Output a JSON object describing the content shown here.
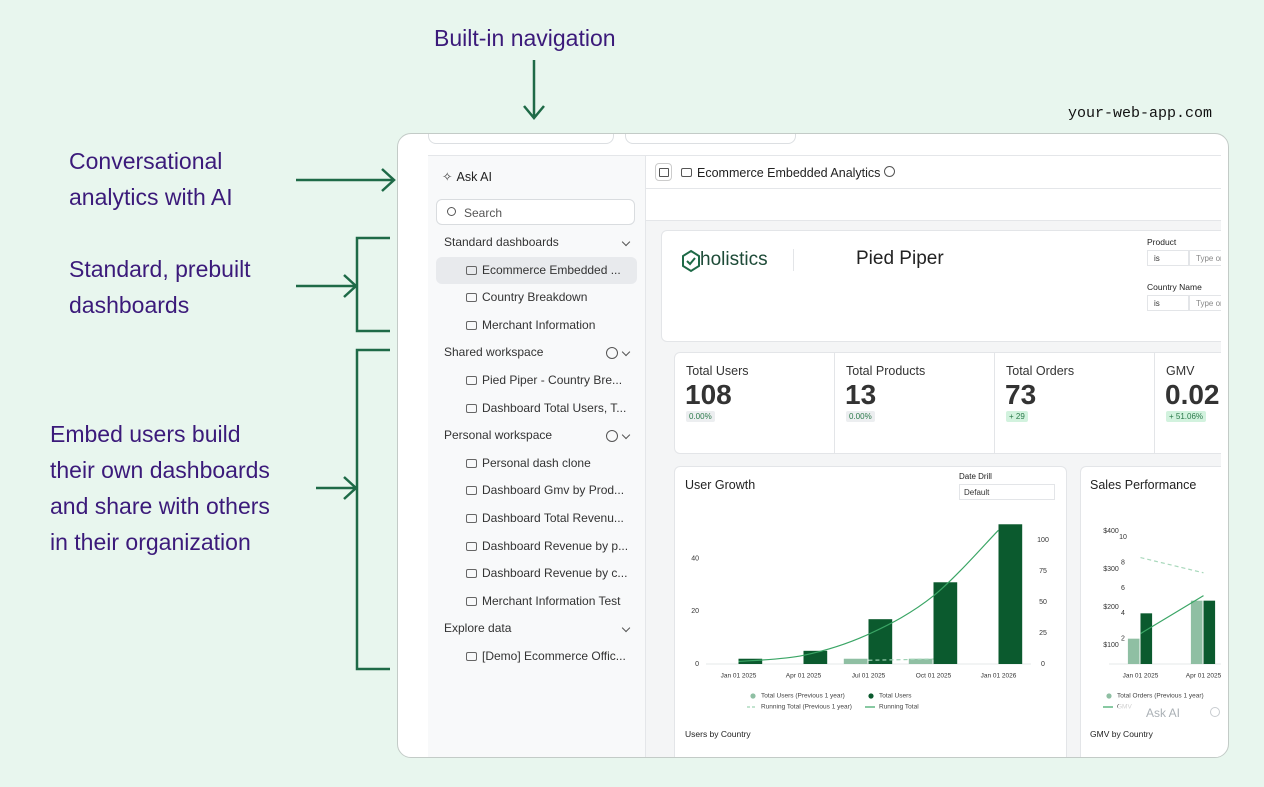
{
  "annotations": {
    "navigation": "Built-in navigation",
    "ai": [
      "Conversational",
      "analytics with AI"
    ],
    "standard": [
      "Standard, prebuilt",
      "dashboards"
    ],
    "embed": [
      "Embed users build",
      "their own dashboards",
      "and share with others",
      "in their organization"
    ]
  },
  "url": "your-web-app.com",
  "sidebar": {
    "ask_ai": "Ask AI",
    "search": "Search",
    "sections": [
      {
        "title": "Standard dashboards",
        "items": [
          "Ecommerce Embedded ...",
          "Country Breakdown",
          "Merchant Information"
        ]
      },
      {
        "title": "Shared workspace",
        "items": [
          "Pied Piper - Country Bre...",
          "Dashboard Total Users, T..."
        ]
      },
      {
        "title": "Personal workspace",
        "items": [
          "Personal dash clone",
          "Dashboard Gmv by Prod...",
          "Dashboard Total Revenu...",
          "Dashboard Revenue by p...",
          "Dashboard Revenue by c...",
          "Merchant Information Test"
        ]
      },
      {
        "title": "Explore data",
        "items": [
          "[Demo] Ecommerce Offic..."
        ]
      }
    ]
  },
  "header": {
    "title": "Ecommerce Embedded Analytics"
  },
  "dashboard": {
    "brand": "holistics",
    "name": "Pied Piper",
    "filters": [
      {
        "label": "Product",
        "operator": "is",
        "placeholder": "Type or"
      },
      {
        "label": "Country Name",
        "operator": "is",
        "placeholder": "Type or"
      }
    ],
    "kpis": [
      {
        "label": "Total Users",
        "value": "108",
        "change": "0.00%",
        "badge_color": "#eceef0"
      },
      {
        "label": "Total Products",
        "value": "13",
        "change": "0.00%",
        "badge_color": "#eceef0"
      },
      {
        "label": "Total Orders",
        "value": "73",
        "change": "+ 29",
        "badge_color": "#d2f2de"
      },
      {
        "label": "GMV",
        "value": "0.02",
        "change": "+ 51.06%",
        "badge_color": "#d2f2de"
      }
    ],
    "charts": [
      {
        "type": "combo",
        "title": "User Growth",
        "control": {
          "label": "Date Drill",
          "value": "Default"
        },
        "categories": [
          "Jan 01 2025",
          "Apr 01 2025",
          "Jul 01 2025",
          "Oct 01 2025",
          "Jan 01 2026"
        ],
        "ylim": [
          0,
          55
        ],
        "yticks": [
          0,
          20,
          40
        ],
        "y2lim": [
          0,
          117
        ],
        "y2ticks": [
          0,
          25,
          50,
          75,
          100
        ],
        "series": [
          {
            "name": "Total Users (Previous 1 year)",
            "type": "bar",
            "color": "#8fbfa3",
            "values": [
              null,
              null,
              2,
              2,
              null
            ]
          },
          {
            "name": "Total Users",
            "type": "bar",
            "color": "#0b5a2e",
            "values": [
              2,
              5,
              17,
              31,
              53
            ]
          },
          {
            "name": "Running Total (Previous 1 year)",
            "type": "line",
            "dashed": true,
            "axis": "y2",
            "color": "#9fd3b5",
            "values": [
              null,
              null,
              3,
              4,
              null
            ]
          },
          {
            "name": "Running Total",
            "type": "line",
            "axis": "y2",
            "color": "#3aa565",
            "values": [
              2,
              7,
              24,
              55,
              108
            ]
          }
        ],
        "footer": "Users by Country"
      },
      {
        "type": "combo",
        "title": "Sales Performance",
        "categories": [
          "Jan 01 2025",
          "Apr 01 2025"
        ],
        "ylim": [
          50,
          450
        ],
        "yticks": [
          {
            "value": 100,
            "label": "$100"
          },
          {
            "value": 200,
            "label": "$200"
          },
          {
            "value": 300,
            "label": "$300"
          },
          {
            "value": 400,
            "label": "$400"
          }
        ],
        "y2lim": [
          0,
          12
        ],
        "y2ticks": [
          2,
          4,
          6,
          8,
          10
        ],
        "series": [
          {
            "name": "Total Orders (Previous 1 year)",
            "type": "bar",
            "axis": "y2",
            "color": "#8fbfa3",
            "values": [
              2,
              5
            ]
          },
          {
            "type": "bar",
            "axis": "y2",
            "color": "#0b5a2e",
            "values": [
              4,
              5
            ]
          },
          {
            "type": "line",
            "dashed": true,
            "color": "#a8d8bb",
            "values": [
              330,
              290
            ]
          },
          {
            "name": "GMV",
            "type": "line",
            "color": "#3aa565",
            "values": [
              130,
              230
            ]
          }
        ],
        "footer": "GMV by Country"
      }
    ]
  },
  "floating": {
    "ask_ai": "Ask AI"
  }
}
